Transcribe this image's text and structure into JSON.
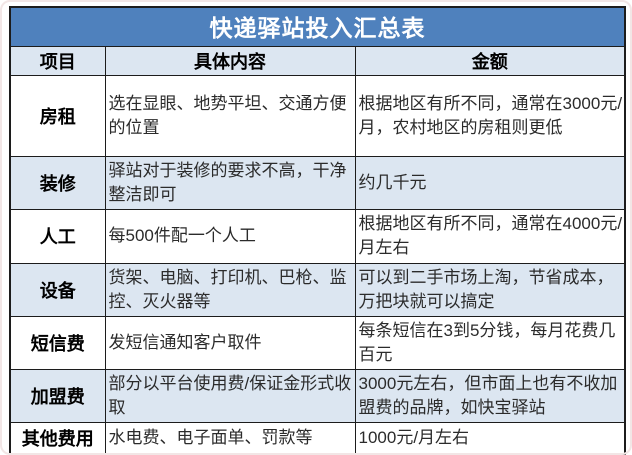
{
  "title": "快递驿站投入汇总表",
  "colors": {
    "title_bg": "#4f81bd",
    "title_text": "#ffffff",
    "band_bg": "#dce6f1",
    "border": "#1c1c1c",
    "text": "#2b2b2b"
  },
  "table": {
    "headers": [
      "项目",
      "具体内容",
      "金额"
    ],
    "rows": [
      {
        "item": "房租",
        "content": "选在显眼、地势平坦、交通方便的位置",
        "amount": "根据地区有所不同，通常在3000元/月，农村地区的房租则更低"
      },
      {
        "item": "装修",
        "content": "驿站对于装修的要求不高，干净整洁即可",
        "amount": "约几千元"
      },
      {
        "item": "人工",
        "content": "每500件配一个人工",
        "amount": "根据地区有所不同，通常在4000元/月左右"
      },
      {
        "item": "设备",
        "content": "货架、电脑、打印机、巴枪、监控、灭火器等",
        "amount": "可以到二手市场上淘，节省成本，万把块就可以搞定"
      },
      {
        "item": "短信费",
        "content": "发短信通知客户取件",
        "amount": "每条短信在3到5分钱，每月花费几百元"
      },
      {
        "item": "加盟费",
        "content": "部分以平台使用费/保证金形式收取",
        "amount": "3000元左右，但市面上也有不收加盟费的品牌，如快宝驿站"
      },
      {
        "item": "其他费用",
        "content": "水电费、电子面单、罚款等",
        "amount": "1000元/月左右"
      }
    ]
  }
}
